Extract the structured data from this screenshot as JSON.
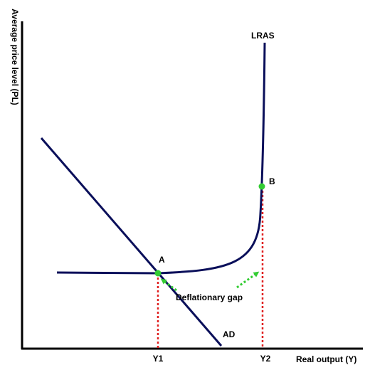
{
  "axes": {
    "y_label": "Average price level (PL)",
    "x_label": "Real output (Y)"
  },
  "curves": {
    "lras_label": "LRAS",
    "ad_label": "AD"
  },
  "points": {
    "a_label": "A",
    "b_label": "B"
  },
  "output_levels": {
    "y1_label": "Y1",
    "y2_label": "Y2"
  },
  "annotation": {
    "gap_label": "Deflationary gap"
  },
  "colors": {
    "axis": "#000000",
    "curve": "#0a0f5a",
    "point": "#33cc33",
    "guide": "#e02020",
    "arrow": "#33cc33"
  }
}
